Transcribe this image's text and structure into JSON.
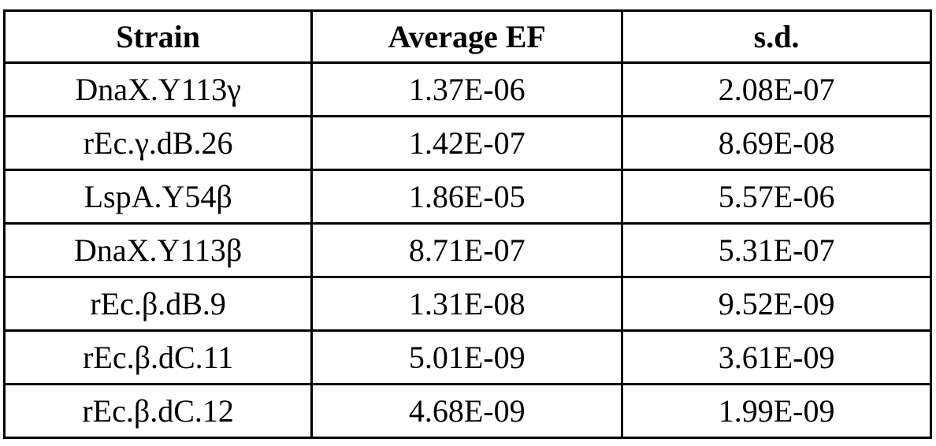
{
  "table": {
    "headers": [
      "Strain",
      "Average EF",
      "s.d."
    ],
    "rows": [
      [
        "DnaX.Y113γ",
        "1.37E-06",
        "2.08E-07"
      ],
      [
        "rEc.γ.dB.26",
        "1.42E-07",
        "8.69E-08"
      ],
      [
        "LspA.Y54β",
        "1.86E-05",
        "5.57E-06"
      ],
      [
        "DnaX.Y113β",
        "8.71E-07",
        "5.31E-07"
      ],
      [
        "rEc.β.dB.9",
        "1.31E-08",
        "9.52E-09"
      ],
      [
        "rEc.β.dC.11",
        "5.01E-09",
        "3.61E-09"
      ],
      [
        "rEc.β.dC.12",
        "4.68E-09",
        "1.99E-09"
      ]
    ]
  }
}
